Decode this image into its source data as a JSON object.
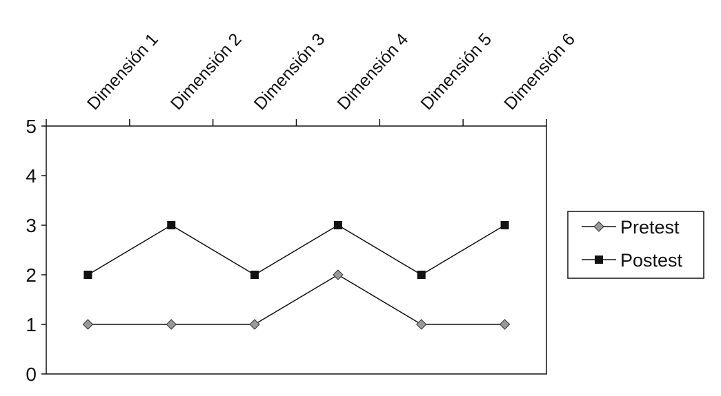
{
  "chart_data": {
    "type": "line",
    "categories": [
      "Dimensión 1",
      "Dimensión 2",
      "Dimensión 3",
      "Dimensión 4",
      "Dimensión 5",
      "Dimensión 6"
    ],
    "series": [
      {
        "name": "Pretest",
        "color": "#999999",
        "marker": "diamond",
        "values": [
          1,
          1,
          1,
          2,
          1,
          1
        ]
      },
      {
        "name": "Postest",
        "color": "#111111",
        "marker": "square",
        "values": [
          2,
          3,
          2,
          3,
          2,
          3
        ]
      }
    ],
    "ylim": [
      0,
      5
    ],
    "yticks": [
      0,
      1,
      2,
      3,
      4,
      5
    ],
    "grid": false,
    "legend": "right"
  }
}
